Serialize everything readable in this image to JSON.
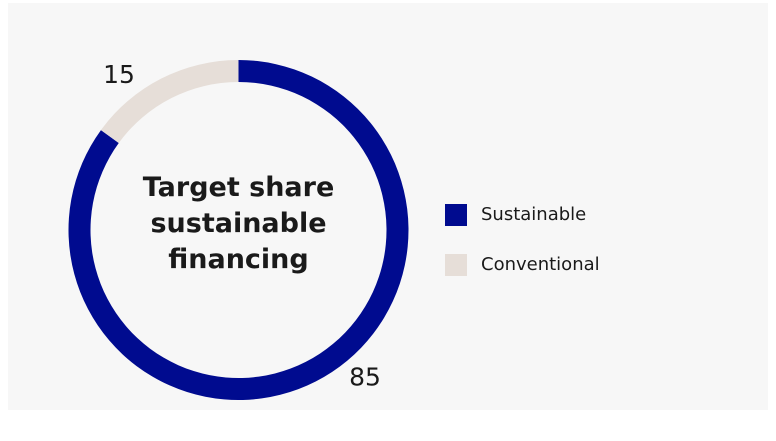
{
  "chart_data": {
    "type": "donut",
    "title": "Target share sustainable financing",
    "categories": [
      "Sustainable",
      "Conventional"
    ],
    "values": [
      85,
      15
    ],
    "colors": [
      "#000b8f",
      "#e6ded8"
    ],
    "legend": "right"
  }
}
